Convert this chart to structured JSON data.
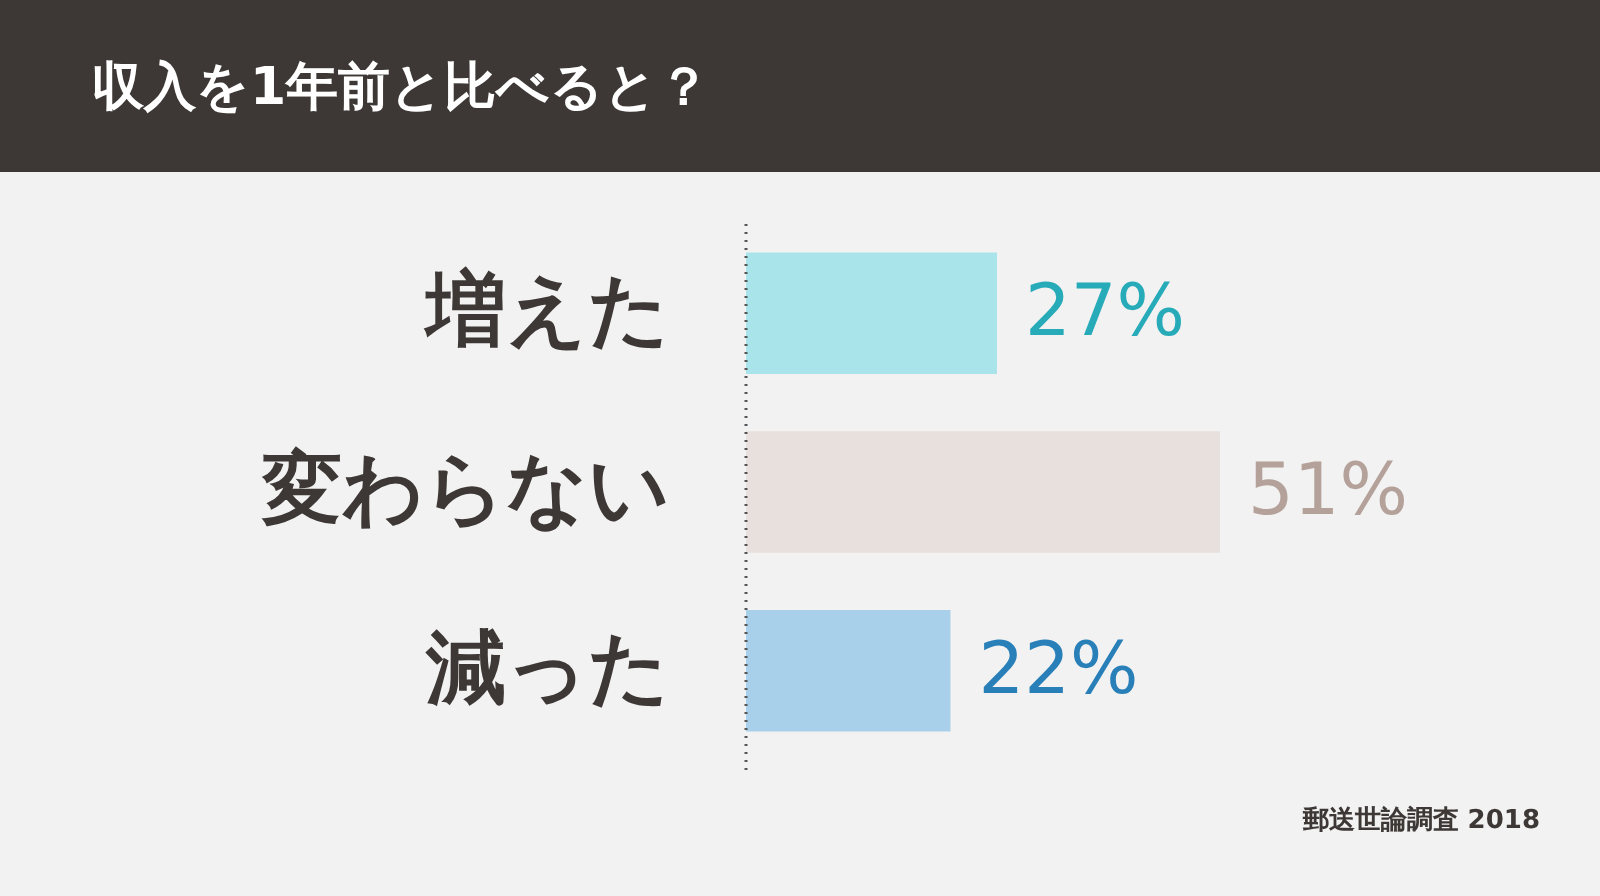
{
  "chart_data": {
    "type": "bar",
    "orientation": "horizontal",
    "title": "収入を1年前と比べると？",
    "categories": [
      "増えた",
      "変わらない",
      "減った"
    ],
    "values": [
      27,
      51,
      22
    ],
    "colors": [
      "#a8e4ea",
      "#e8e0dc",
      "#a9d0ea"
    ],
    "value_labels": [
      "27%",
      "51%",
      "22%"
    ],
    "annotations": [
      "郵送世論調査 2018"
    ]
  }
}
